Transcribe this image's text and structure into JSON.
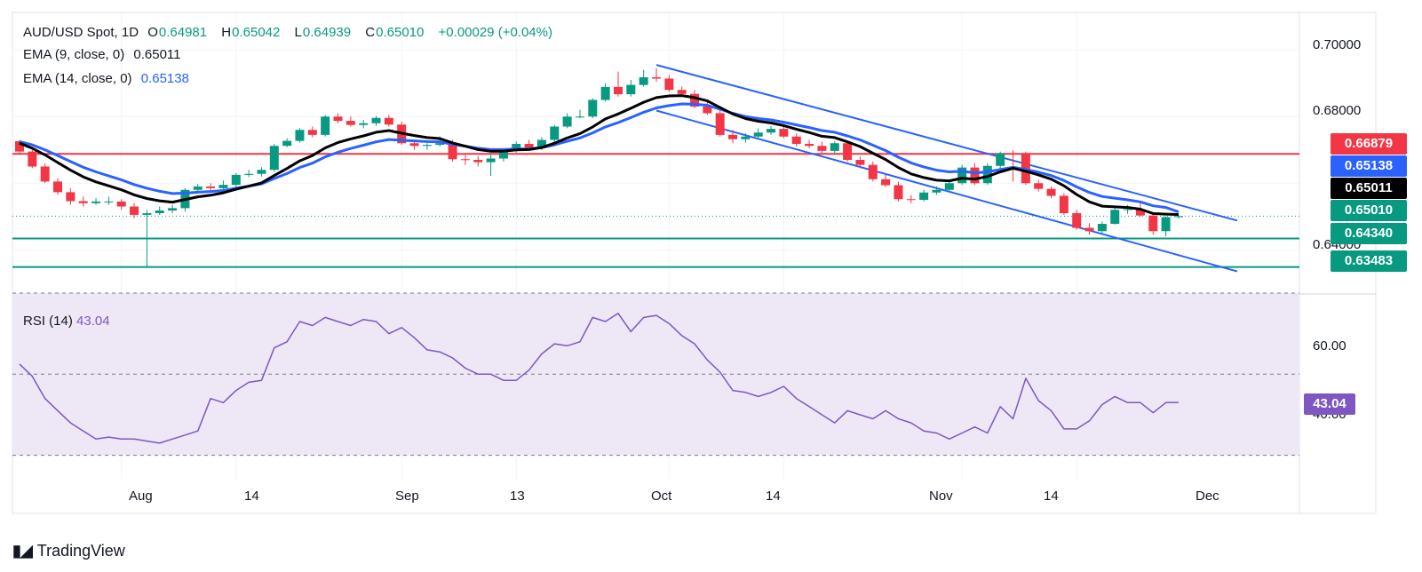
{
  "legend": {
    "symbol": "AUD/USD Spot, 1D",
    "open_label": "O",
    "open": "0.64981",
    "high_label": "H",
    "high": "0.65042",
    "low_label": "L",
    "low": "0.64939",
    "close_label": "C",
    "close": "0.65010",
    "change": "+0.00029 (+0.04%)",
    "ema9_label": "EMA (9, close, 0)",
    "ema9_value": "0.65011",
    "ema14_label": "EMA (14, close, 0)",
    "ema14_value": "0.65138",
    "rsi_label": "RSI (14)",
    "rsi_value": "43.04"
  },
  "price_axis": [
    "0.70000",
    "0.68000",
    "0.64000"
  ],
  "rsi_axis": [
    "60.00",
    "40.00"
  ],
  "time_axis": [
    "Aug",
    "14",
    "Sep",
    "13",
    "Oct",
    "14",
    "Nov",
    "14",
    "Dec"
  ],
  "price_tags": [
    {
      "label": "0.66879",
      "color": "#f23645"
    },
    {
      "label": "0.65138",
      "color": "#2962ff"
    },
    {
      "label": "0.65011",
      "color": "#000000"
    },
    {
      "label": "0.65010",
      "color": "#089981"
    },
    {
      "label": "0.64340",
      "color": "#089981"
    },
    {
      "label": "0.63483",
      "color": "#089981"
    }
  ],
  "rsi_tag": {
    "label": "43.04",
    "color": "#7e57c2"
  },
  "brand": "TradingView",
  "colors": {
    "up": "#089981",
    "down": "#f23645",
    "ema9": "#000000",
    "ema14": "#2962ff",
    "channel": "#2962ff",
    "resistance": "#f23645",
    "support": "#089981",
    "rsi": "#7e57c2",
    "rsi_band": "#ede7f6"
  },
  "chart_data": {
    "type": "candlestick",
    "title": "AUD/USD Spot, 1D",
    "ylim": [
      0.627,
      0.707
    ],
    "rsi_ylim": [
      24,
      70
    ],
    "dates": [
      "Jul 22",
      "Jul 23",
      "Jul 24",
      "Jul 25",
      "Jul 26",
      "Jul 29",
      "Jul 30",
      "Jul 31",
      "Aug 1",
      "Aug 2",
      "Aug 5",
      "Aug 6",
      "Aug 7",
      "Aug 8",
      "Aug 9",
      "Aug 12",
      "Aug 13",
      "Aug 14",
      "Aug 15",
      "Aug 16",
      "Aug 19",
      "Aug 20",
      "Aug 21",
      "Aug 22",
      "Aug 23",
      "Aug 26",
      "Aug 27",
      "Aug 28",
      "Aug 29",
      "Aug 30",
      "Sep 2",
      "Sep 3",
      "Sep 4",
      "Sep 5",
      "Sep 6",
      "Sep 9",
      "Sep 10",
      "Sep 11",
      "Sep 12",
      "Sep 13",
      "Sep 16",
      "Sep 17",
      "Sep 18",
      "Sep 19",
      "Sep 20",
      "Sep 23",
      "Sep 24",
      "Sep 25",
      "Sep 26",
      "Sep 27",
      "Sep 30",
      "Oct 1",
      "Oct 2",
      "Oct 3",
      "Oct 4",
      "Oct 7",
      "Oct 8",
      "Oct 9",
      "Oct 10",
      "Oct 11",
      "Oct 14",
      "Oct 15",
      "Oct 16",
      "Oct 17",
      "Oct 18",
      "Oct 21",
      "Oct 22",
      "Oct 23",
      "Oct 24",
      "Oct 25",
      "Oct 28",
      "Oct 29",
      "Oct 30",
      "Oct 31",
      "Nov 1",
      "Nov 4",
      "Nov 5",
      "Nov 6",
      "Nov 7",
      "Nov 8",
      "Nov 11",
      "Nov 12",
      "Nov 13",
      "Nov 14",
      "Nov 15",
      "Nov 18",
      "Nov 19",
      "Nov 20",
      "Nov 21",
      "Nov 22",
      "Nov 25",
      "Nov 26"
    ],
    "open": [
      0.6726,
      0.6695,
      0.665,
      0.6605,
      0.6573,
      0.6546,
      0.654,
      0.6545,
      0.6545,
      0.653,
      0.6505,
      0.651,
      0.6518,
      0.6525,
      0.658,
      0.659,
      0.6585,
      0.6595,
      0.6625,
      0.6628,
      0.664,
      0.6712,
      0.6727,
      0.676,
      0.6745,
      0.68,
      0.6787,
      0.6775,
      0.678,
      0.6796,
      0.6776,
      0.672,
      0.6712,
      0.6715,
      0.672,
      0.6672,
      0.667,
      0.6663,
      0.6674,
      0.6698,
      0.6718,
      0.6705,
      0.673,
      0.677,
      0.68,
      0.68,
      0.685,
      0.6889,
      0.6867,
      0.6895,
      0.6918,
      0.6914,
      0.688,
      0.6868,
      0.683,
      0.681,
      0.6745,
      0.6732,
      0.674,
      0.6752,
      0.6763,
      0.674,
      0.6718,
      0.6712,
      0.6697,
      0.672,
      0.667,
      0.6655,
      0.6612,
      0.6594,
      0.6552,
      0.655,
      0.6572,
      0.658,
      0.66,
      0.6647,
      0.66,
      0.6652,
      0.669,
      0.6688,
      0.66,
      0.6583,
      0.6562,
      0.651,
      0.6466,
      0.6456,
      0.6478,
      0.652,
      0.6522,
      0.6503,
      0.6456,
      0.6498
    ],
    "close": [
      0.6695,
      0.665,
      0.6605,
      0.6573,
      0.6546,
      0.654,
      0.6545,
      0.6545,
      0.653,
      0.6505,
      0.651,
      0.6518,
      0.6525,
      0.658,
      0.659,
      0.6585,
      0.6595,
      0.6625,
      0.6628,
      0.664,
      0.6712,
      0.6727,
      0.676,
      0.6745,
      0.68,
      0.6787,
      0.6775,
      0.678,
      0.6796,
      0.6776,
      0.672,
      0.6712,
      0.6715,
      0.672,
      0.6672,
      0.667,
      0.6663,
      0.6674,
      0.6698,
      0.6718,
      0.6705,
      0.673,
      0.677,
      0.68,
      0.68,
      0.685,
      0.6889,
      0.6867,
      0.6895,
      0.6918,
      0.6914,
      0.688,
      0.6868,
      0.683,
      0.681,
      0.6745,
      0.6732,
      0.674,
      0.6752,
      0.6763,
      0.674,
      0.6718,
      0.6712,
      0.6697,
      0.672,
      0.667,
      0.6655,
      0.6612,
      0.6594,
      0.6552,
      0.655,
      0.6572,
      0.658,
      0.66,
      0.6647,
      0.66,
      0.6652,
      0.669,
      0.6688,
      0.66,
      0.6583,
      0.6562,
      0.651,
      0.6466,
      0.6456,
      0.6478,
      0.652,
      0.6522,
      0.6503,
      0.6456,
      0.6498,
      0.6501
    ],
    "high": [
      0.673,
      0.67,
      0.666,
      0.6615,
      0.6585,
      0.656,
      0.6555,
      0.656,
      0.6552,
      0.654,
      0.652,
      0.653,
      0.6535,
      0.6585,
      0.6598,
      0.66,
      0.6608,
      0.663,
      0.664,
      0.6648,
      0.6718,
      0.6735,
      0.6765,
      0.677,
      0.6805,
      0.681,
      0.68,
      0.679,
      0.6802,
      0.6805,
      0.6785,
      0.673,
      0.672,
      0.674,
      0.673,
      0.6685,
      0.6682,
      0.669,
      0.6705,
      0.6725,
      0.673,
      0.6738,
      0.6775,
      0.681,
      0.682,
      0.6855,
      0.69,
      0.6935,
      0.691,
      0.694,
      0.6945,
      0.6925,
      0.689,
      0.688,
      0.6845,
      0.682,
      0.676,
      0.675,
      0.6765,
      0.6772,
      0.6775,
      0.675,
      0.673,
      0.6725,
      0.6725,
      0.6725,
      0.668,
      0.6665,
      0.6625,
      0.6605,
      0.6565,
      0.658,
      0.659,
      0.661,
      0.6655,
      0.666,
      0.666,
      0.6695,
      0.67,
      0.6695,
      0.661,
      0.659,
      0.657,
      0.652,
      0.648,
      0.6485,
      0.653,
      0.6535,
      0.6545,
      0.651,
      0.65,
      0.6504
    ],
    "low": [
      0.6685,
      0.6645,
      0.66,
      0.6565,
      0.6535,
      0.653,
      0.6535,
      0.6535,
      0.652,
      0.6495,
      0.635,
      0.6505,
      0.651,
      0.6515,
      0.6575,
      0.6578,
      0.658,
      0.659,
      0.6618,
      0.662,
      0.6635,
      0.6708,
      0.6722,
      0.6738,
      0.674,
      0.678,
      0.677,
      0.6765,
      0.6772,
      0.677,
      0.6715,
      0.67,
      0.67,
      0.671,
      0.6665,
      0.6655,
      0.665,
      0.6622,
      0.6665,
      0.6692,
      0.67,
      0.67,
      0.6725,
      0.6765,
      0.6795,
      0.6795,
      0.6845,
      0.686,
      0.686,
      0.689,
      0.6905,
      0.6875,
      0.686,
      0.6825,
      0.6805,
      0.674,
      0.672,
      0.6722,
      0.6735,
      0.6745,
      0.6735,
      0.671,
      0.6705,
      0.669,
      0.669,
      0.6665,
      0.6645,
      0.6605,
      0.6588,
      0.6545,
      0.654,
      0.6545,
      0.6565,
      0.6575,
      0.6595,
      0.6595,
      0.6595,
      0.6645,
      0.6605,
      0.6595,
      0.6575,
      0.6555,
      0.6505,
      0.646,
      0.6445,
      0.645,
      0.6475,
      0.6508,
      0.65,
      0.6445,
      0.644,
      0.6494
    ],
    "ema9": [
      0.672,
      0.6705,
      0.6685,
      0.6662,
      0.6639,
      0.6619,
      0.6604,
      0.6592,
      0.658,
      0.6565,
      0.6554,
      0.6547,
      0.6543,
      0.6551,
      0.6559,
      0.6564,
      0.6571,
      0.6582,
      0.6591,
      0.6601,
      0.6623,
      0.6644,
      0.6667,
      0.6683,
      0.6706,
      0.6722,
      0.6733,
      0.6742,
      0.6753,
      0.6758,
      0.675,
      0.6743,
      0.6737,
      0.6734,
      0.6721,
      0.6711,
      0.6701,
      0.6696,
      0.6696,
      0.67,
      0.6701,
      0.6707,
      0.672,
      0.6736,
      0.6749,
      0.6769,
      0.6793,
      0.6808,
      0.6825,
      0.6843,
      0.6857,
      0.6862,
      0.6863,
      0.6857,
      0.6847,
      0.6827,
      0.6808,
      0.6794,
      0.6786,
      0.6781,
      0.6773,
      0.6762,
      0.6752,
      0.6741,
      0.6737,
      0.6724,
      0.671,
      0.669,
      0.6671,
      0.6647,
      0.6628,
      0.6617,
      0.6609,
      0.6607,
      0.6615,
      0.6612,
      0.662,
      0.6634,
      0.6645,
      0.6636,
      0.6625,
      0.6612,
      0.6592,
      0.6566,
      0.6544,
      0.6531,
      0.6529,
      0.6527,
      0.6522,
      0.6509,
      0.6507,
      0.6506
    ],
    "ema14": [
      0.6725,
      0.6715,
      0.67,
      0.6683,
      0.6665,
      0.6648,
      0.6634,
      0.6622,
      0.661,
      0.6596,
      0.6585,
      0.6576,
      0.6569,
      0.657,
      0.6573,
      0.6575,
      0.6578,
      0.6585,
      0.6591,
      0.6598,
      0.6614,
      0.6629,
      0.6647,
      0.666,
      0.6679,
      0.6693,
      0.6704,
      0.6714,
      0.6724,
      0.6731,
      0.6729,
      0.6727,
      0.6725,
      0.6724,
      0.6717,
      0.6711,
      0.6705,
      0.6701,
      0.6701,
      0.6703,
      0.6703,
      0.6707,
      0.6715,
      0.6726,
      0.6736,
      0.6751,
      0.6769,
      0.6782,
      0.6797,
      0.6813,
      0.6826,
      0.6833,
      0.6838,
      0.6837,
      0.6834,
      0.6822,
      0.681,
      0.68,
      0.6794,
      0.679,
      0.6783,
      0.6775,
      0.6767,
      0.6758,
      0.6753,
      0.6742,
      0.673,
      0.6714,
      0.6698,
      0.6678,
      0.6661,
      0.6649,
      0.6639,
      0.6634,
      0.6636,
      0.6631,
      0.6634,
      0.6641,
      0.6648,
      0.6641,
      0.6633,
      0.6623,
      0.6608,
      0.6589,
      0.6572,
      0.656,
      0.6555,
      0.655,
      0.6544,
      0.6532,
      0.6527,
      0.6514
    ],
    "rsi": [
      52.5,
      49.5,
      44,
      41,
      38,
      36,
      34,
      34.5,
      34,
      34,
      33.5,
      33,
      34,
      35,
      36,
      44,
      43,
      46,
      48,
      48.5,
      56.5,
      58,
      63,
      62,
      64,
      63,
      62,
      63.5,
      63,
      60,
      61.5,
      59,
      56,
      55.5,
      54,
      51.5,
      50,
      50,
      48.5,
      48.5,
      51,
      55,
      57.5,
      57,
      58,
      64,
      63,
      65,
      60.5,
      64,
      64.5,
      62.5,
      59.5,
      57.5,
      53.5,
      50.5,
      46,
      45.5,
      44.5,
      45.5,
      47,
      44,
      42,
      40,
      38,
      41,
      40,
      39,
      41,
      39,
      38,
      36,
      35.5,
      34,
      35.5,
      37,
      35.5,
      42,
      39,
      49,
      43.5,
      41,
      36.5,
      36.5,
      38.5,
      42.5,
      44.5,
      43,
      43,
      40.5,
      43,
      43.04
    ],
    "horizontal_lines": [
      0.66879,
      0.6434,
      0.63483
    ],
    "channel_upper": [
      {
        "date": "Sep 30",
        "price": 0.6955
      },
      {
        "date": "Nov 26",
        "price": 0.6535
      }
    ],
    "channel_lower": [
      {
        "date": "Sep 30",
        "price": 0.6818
      },
      {
        "date": "Nov 26",
        "price": 0.6384
      }
    ],
    "rsi_levels": [
      70,
      50,
      30
    ]
  }
}
